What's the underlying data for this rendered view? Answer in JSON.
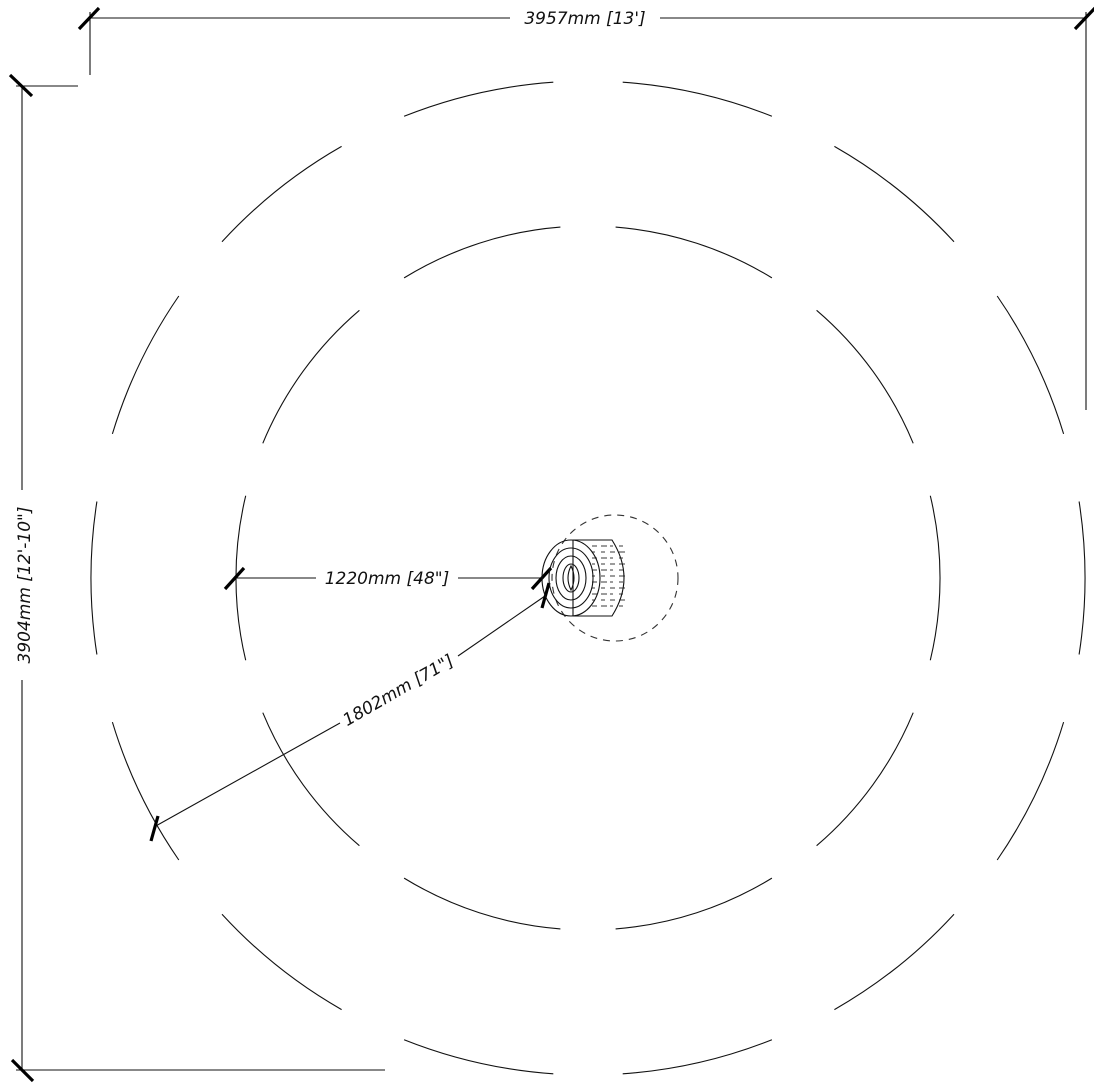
{
  "dimensions": {
    "width": {
      "label": "3957mm [13']"
    },
    "height": {
      "label": "3904mm [12'-10\"]"
    },
    "inner_radius": {
      "label": "1220mm [48\"]"
    },
    "outer_radius": {
      "label": "1802mm [71\"]"
    }
  },
  "elements": {
    "outer_circle": "outer clearance circle (dashed)",
    "inner_circle": "inner clearance circle (dashed)",
    "center_item": "round log stool / stump",
    "center_dashed": "stump footprint (dashed)"
  },
  "colors": {
    "line": "#111111",
    "background": "#ffffff"
  }
}
